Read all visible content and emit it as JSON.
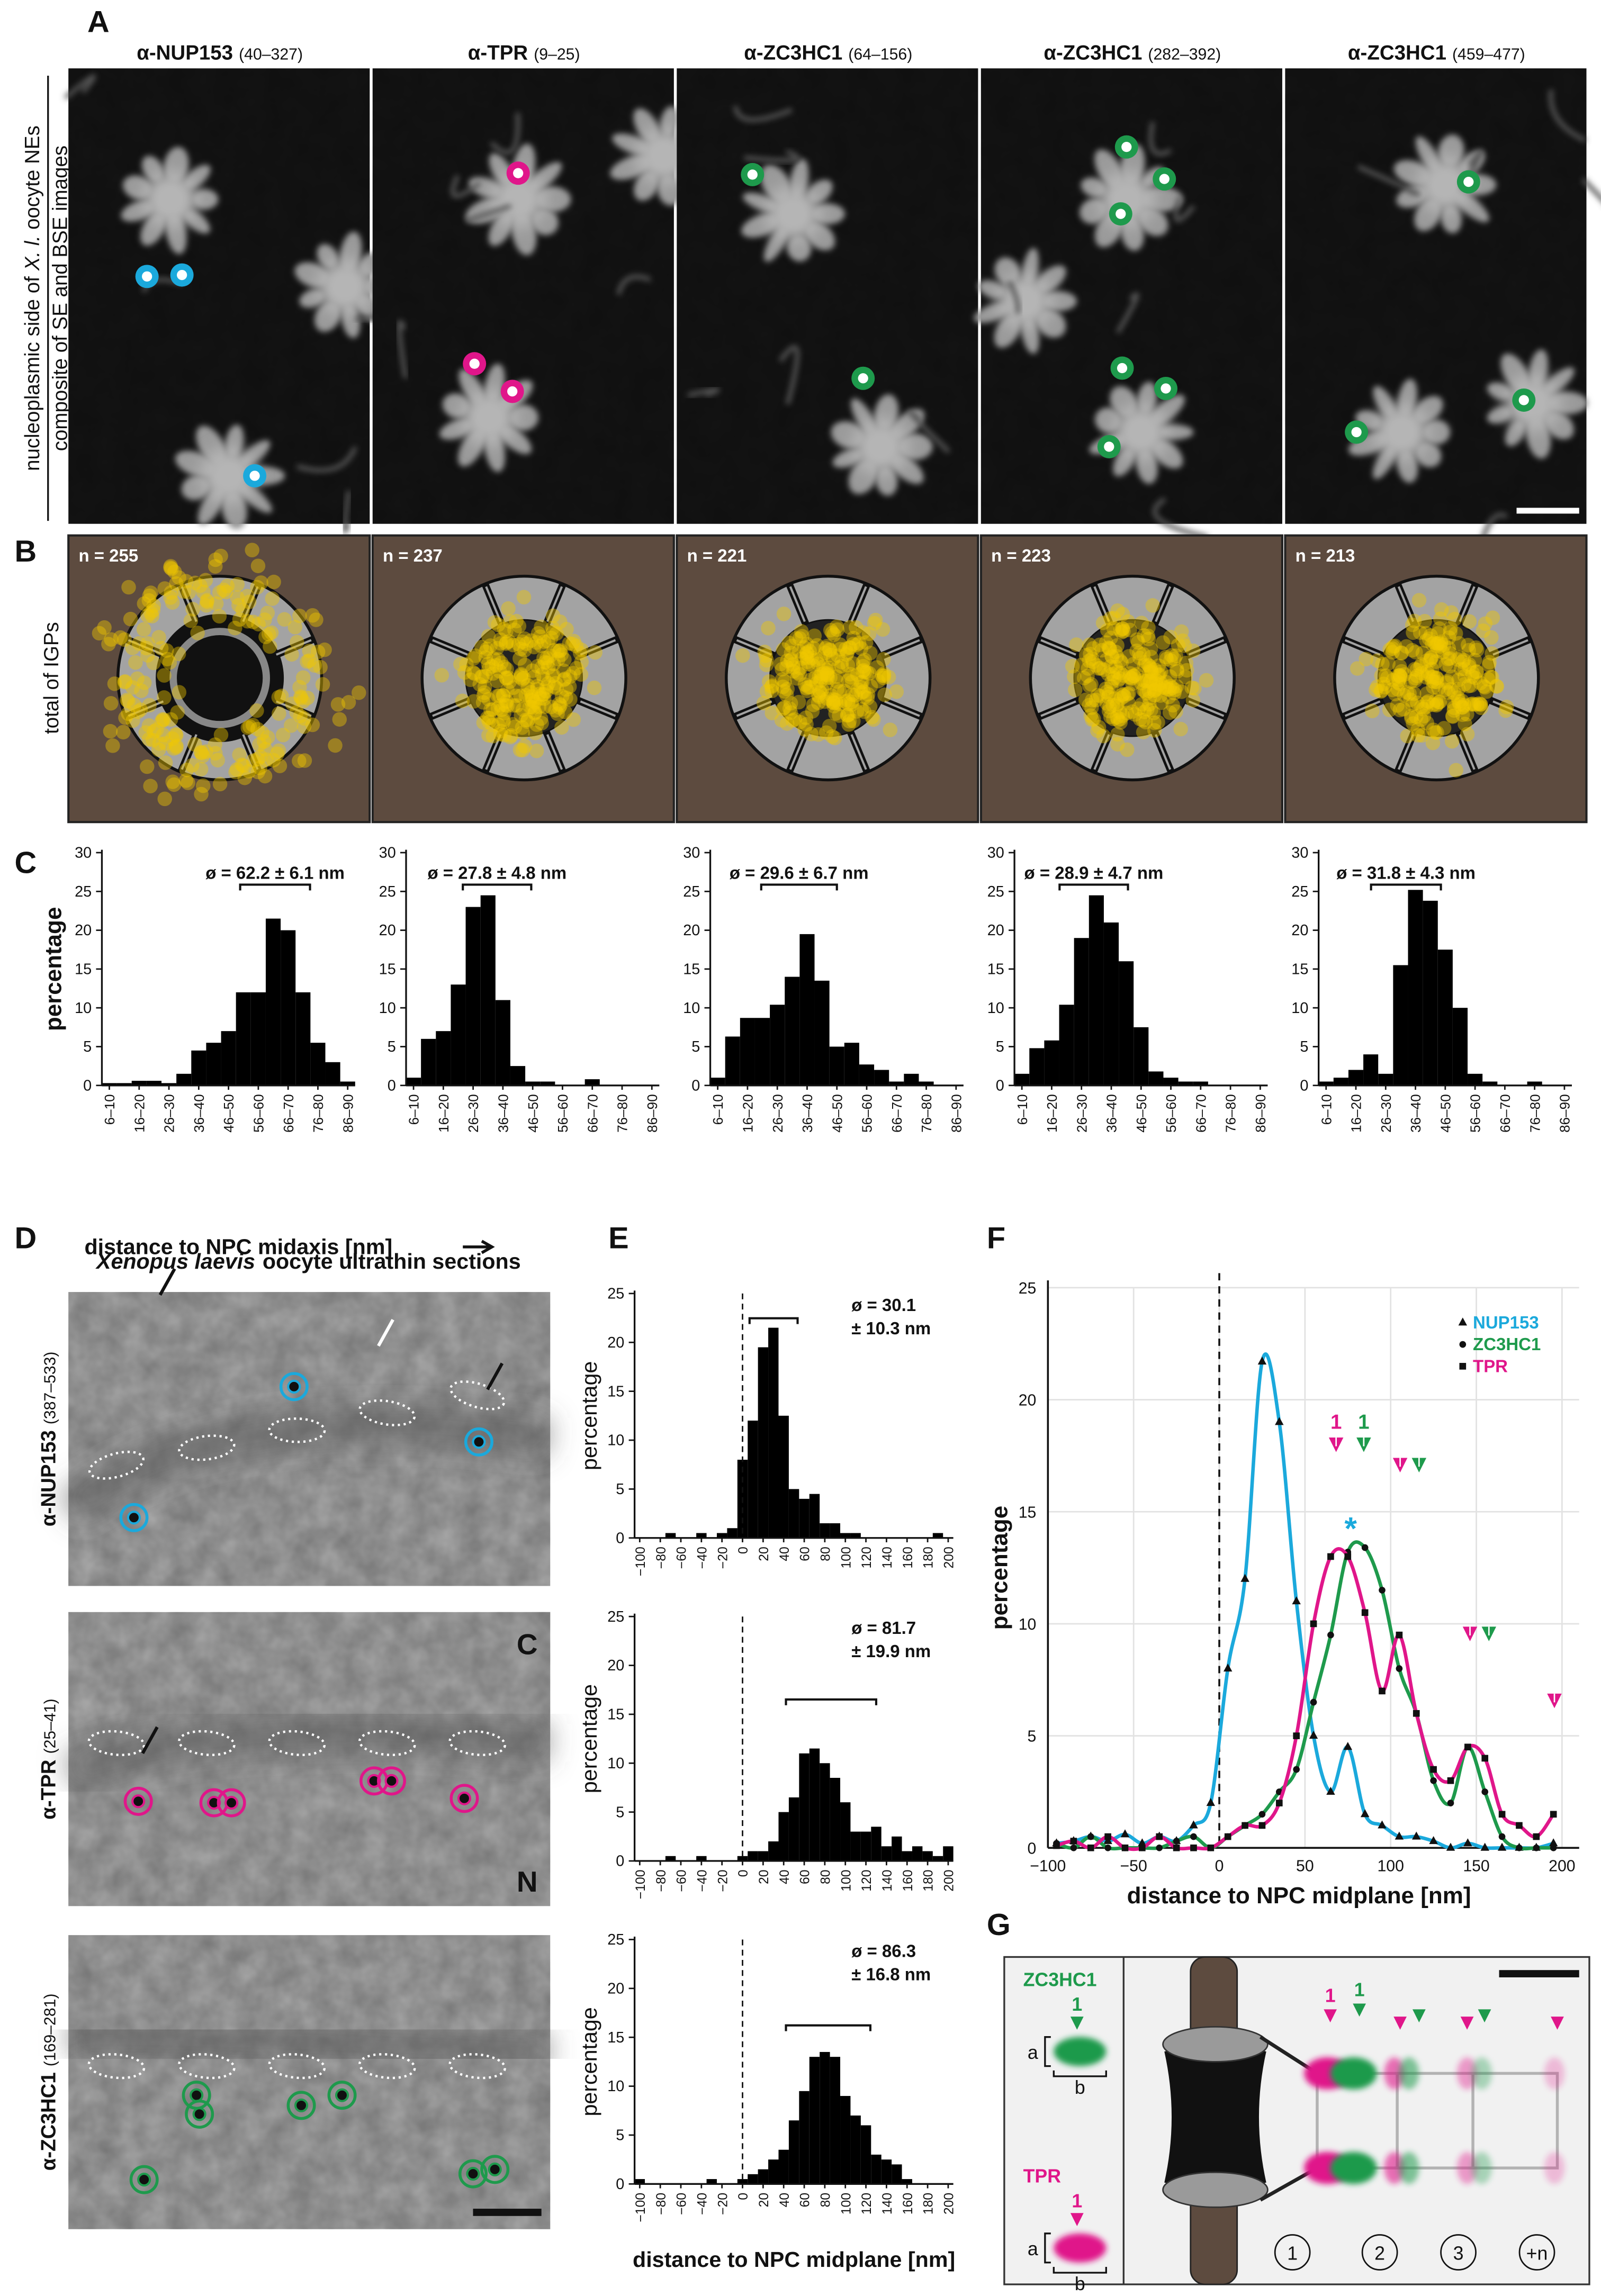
{
  "panel_labels": [
    "A",
    "B",
    "C",
    "D",
    "E",
    "F",
    "G"
  ],
  "panel_a": {
    "side_label": {
      "line1_start": "nucleoplasmic side of",
      "line1_italic": "X. l.",
      "line1_end": "oocyte NEs",
      "line2": "composite of SE and BSE images"
    },
    "columns": [
      {
        "antibody": "α-NUP153",
        "range": "(40–327)"
      },
      {
        "antibody": "α-TPR",
        "range": "(9–25)"
      },
      {
        "antibody": "α-ZC3HC1",
        "range": "(64–156)"
      },
      {
        "antibody": "α-ZC3HC1",
        "range": "(282–392)"
      },
      {
        "antibody": "α-ZC3HC1",
        "range": "(459–477)"
      }
    ]
  },
  "panel_b": {
    "side_label": "total of IGPs",
    "n_labels": [
      "n = 255",
      "n = 237",
      "n = 221",
      "n = 223",
      "n = 213"
    ]
  },
  "panel_c": {
    "y_label": "percentage",
    "x_label": "distance to NPC midaxis [nm]"
  },
  "panel_d": {
    "title_italic": "Xenopus laevis",
    "title_rest": "oocyte ultrathin sections",
    "rows": [
      {
        "antibody": "α-NUP153",
        "range": "(387–533)"
      },
      {
        "antibody": "α-TPR",
        "range": "(25–41)"
      },
      {
        "antibody": "α-ZC3HC1",
        "range": "(169–281)"
      }
    ],
    "side_letters": [
      "C",
      "N"
    ]
  },
  "chart_data": [
    {
      "type": "bar",
      "panel": "C",
      "annotation": "ø = 62.2 ± 6.1 nm",
      "color": "#000000",
      "categories": [
        "6–10",
        null,
        "16–20",
        null,
        "26–30",
        null,
        "36–40",
        null,
        "46–50",
        null,
        "56–60",
        null,
        "66–70",
        null,
        "76–80",
        null,
        "86–90"
      ],
      "values": [
        0.3,
        0.3,
        0.6,
        0.6,
        0.3,
        1.5,
        4.5,
        5.5,
        7,
        12,
        12,
        21.5,
        20,
        12,
        5.5,
        3,
        0.5
      ],
      "ylim": [
        0,
        30
      ],
      "yticks": [
        0,
        5,
        10,
        15,
        20,
        25,
        30
      ]
    },
    {
      "type": "bar",
      "panel": "C",
      "annotation": "ø = 27.8 ± 4.8 nm",
      "color": "#000000",
      "categories": [
        "6–10",
        null,
        "16–20",
        null,
        "26–30",
        null,
        "36–40",
        null,
        "46–50",
        null,
        "56–60",
        null,
        "66–70",
        null,
        "76–80",
        null,
        "86–90"
      ],
      "values": [
        1,
        6,
        7,
        13,
        23,
        24.5,
        11,
        2.5,
        0.5,
        0.5,
        0,
        0,
        0.8,
        0,
        0,
        0,
        0
      ],
      "ylim": [
        0,
        30
      ],
      "yticks": [
        0,
        5,
        10,
        15,
        20,
        25,
        30
      ]
    },
    {
      "type": "bar",
      "panel": "C",
      "annotation": "ø = 29.6 ± 6.7 nm",
      "color": "#000000",
      "categories": [
        "6–10",
        null,
        "16–20",
        null,
        "26–30",
        null,
        "36–40",
        null,
        "46–50",
        null,
        "56–60",
        null,
        "66–70",
        null,
        "76–80",
        null,
        "86–90"
      ],
      "values": [
        1,
        6.3,
        8.7,
        8.7,
        10.4,
        14,
        19.5,
        13.5,
        5,
        5.5,
        2.7,
        2,
        0.5,
        1.5,
        0.5,
        0,
        0
      ],
      "ylim": [
        0,
        30
      ],
      "yticks": [
        0,
        5,
        10,
        15,
        20,
        25,
        30
      ]
    },
    {
      "type": "bar",
      "panel": "C",
      "annotation": "ø = 28.9 ± 4.7 nm",
      "color": "#000000",
      "categories": [
        "6–10",
        null,
        "16–20",
        null,
        "26–30",
        null,
        "36–40",
        null,
        "46–50",
        null,
        "56–60",
        null,
        "66–70",
        null,
        "76–80",
        null,
        "86–90"
      ],
      "values": [
        1.5,
        4.8,
        5.8,
        10.4,
        19,
        24.5,
        21,
        16,
        7.5,
        1.8,
        1,
        0.5,
        0.5,
        0,
        0,
        0,
        0
      ],
      "ylim": [
        0,
        30
      ],
      "yticks": [
        0,
        5,
        10,
        15,
        20,
        25,
        30
      ]
    },
    {
      "type": "bar",
      "panel": "C",
      "annotation": "ø = 31.8 ± 4.3 nm",
      "color": "#000000",
      "categories": [
        "6–10",
        null,
        "16–20",
        null,
        "26–30",
        null,
        "36–40",
        null,
        "46–50",
        null,
        "56–60",
        null,
        "66–70",
        null,
        "76–80",
        null,
        "86–90"
      ],
      "values": [
        0.5,
        1,
        2,
        4,
        1.5,
        15.5,
        25.2,
        23.8,
        17.5,
        10,
        1.5,
        0.5,
        0,
        0,
        0.5,
        0,
        0
      ],
      "ylim": [
        0,
        30
      ],
      "yticks": [
        0,
        5,
        10,
        15,
        20,
        25,
        30
      ]
    },
    {
      "type": "bar",
      "panel": "E",
      "y_label": "percentage",
      "annotation": [
        "ø = 30.1",
        "± 10.3 nm"
      ],
      "color": "#000000",
      "reference_line": "0",
      "categories": [
        "−100",
        null,
        "−80",
        null,
        "−60",
        null,
        "−40",
        null,
        "−20",
        null,
        "0",
        null,
        "20",
        null,
        "40",
        null,
        "60",
        null,
        "80",
        null,
        "100",
        null,
        "120",
        null,
        "140",
        null,
        "160",
        null,
        "180",
        null,
        "200"
      ],
      "values": [
        0,
        0,
        0,
        0.5,
        0,
        0,
        0.5,
        0,
        0.5,
        1,
        8,
        12,
        19.5,
        21.5,
        12.5,
        5,
        4,
        4.5,
        1.5,
        1.5,
        0.5,
        0.5,
        0,
        0,
        0,
        0,
        0,
        0,
        0,
        0.5,
        0
      ],
      "ylim": [
        0,
        25
      ],
      "yticks": [
        0,
        5,
        10,
        15,
        20,
        25
      ]
    },
    {
      "type": "bar",
      "panel": "E",
      "y_label": "percentage",
      "annotation": [
        "ø = 81.7",
        "± 19.9 nm"
      ],
      "color": "#000000",
      "reference_line": "0",
      "categories": [
        "−100",
        null,
        "−80",
        null,
        "−60",
        null,
        "−40",
        null,
        "−20",
        null,
        "0",
        null,
        "20",
        null,
        "40",
        null,
        "60",
        null,
        "80",
        null,
        "100",
        null,
        "120",
        null,
        "140",
        null,
        "160",
        null,
        "180",
        null,
        "200"
      ],
      "values": [
        0,
        0,
        0,
        0.5,
        0,
        0,
        0.5,
        0,
        0,
        0,
        0.5,
        1,
        1,
        2,
        5,
        6.5,
        11,
        11.5,
        10,
        8.5,
        6,
        3,
        3,
        3.5,
        1.5,
        2.5,
        1,
        1.5,
        1,
        0.5,
        1.5
      ],
      "ylim": [
        0,
        25
      ],
      "yticks": [
        0,
        5,
        10,
        15,
        20,
        25
      ]
    },
    {
      "type": "bar",
      "panel": "E",
      "y_label": "percentage",
      "x_label": "distance to NPC midplane [nm]",
      "annotation": [
        "ø = 86.3",
        "± 16.8 nm"
      ],
      "color": "#000000",
      "reference_line": "0",
      "categories": [
        "−100",
        null,
        "−80",
        null,
        "−60",
        null,
        "−40",
        null,
        "−20",
        null,
        "0",
        null,
        "20",
        null,
        "40",
        null,
        "60",
        null,
        "80",
        null,
        "100",
        null,
        "120",
        null,
        "140",
        null,
        "160",
        null,
        "180",
        null,
        "200"
      ],
      "values": [
        0.5,
        0,
        0,
        0,
        0,
        0,
        0,
        0.5,
        0,
        0,
        0.5,
        1,
        1.5,
        2.5,
        3.5,
        6.5,
        9.5,
        13,
        13.5,
        13,
        9,
        7,
        6,
        3,
        2.5,
        2,
        0.5,
        0,
        0,
        0,
        0
      ],
      "ylim": [
        0,
        25
      ],
      "yticks": [
        0,
        5,
        10,
        15,
        20,
        25
      ]
    },
    {
      "type": "line",
      "panel": "F",
      "y_label": "percentage",
      "x_label": "distance to NPC midplane [nm]",
      "grid": true,
      "legend": "upper right",
      "reference_line": 0,
      "xlim": [
        -100,
        210
      ],
      "xticks": [
        {
          "value": -100,
          "label": "−100"
        },
        {
          "value": -50,
          "label": "−50"
        },
        0,
        50,
        100,
        150,
        200
      ],
      "ylim": [
        0,
        25
      ],
      "yticks": [
        0,
        5,
        10,
        15,
        20,
        25
      ],
      "x": [
        -95,
        -85,
        -75,
        -65,
        -55,
        -45,
        -35,
        -25,
        -15,
        -5,
        5,
        15,
        25,
        35,
        45,
        55,
        65,
        75,
        85,
        95,
        105,
        115,
        125,
        135,
        145,
        155,
        165,
        175,
        185,
        195
      ],
      "series": [
        {
          "name": "NUP153",
          "color": "#1ba9dc",
          "marker": "triangle",
          "values": [
            0.2,
            0.3,
            0.5,
            0.3,
            0.6,
            0.2,
            0.5,
            0.3,
            1,
            2,
            8,
            12,
            21.7,
            19,
            11,
            5,
            2.5,
            4.5,
            1.5,
            1,
            0.5,
            0.5,
            0.3,
            0,
            0.2,
            0,
            0,
            0,
            0,
            0.2
          ]
        },
        {
          "name": "ZC3HC1",
          "color": "#1e9a4c",
          "marker": "circle",
          "values": [
            0.2,
            0,
            0.5,
            0,
            0,
            0,
            0,
            0.3,
            0.5,
            0,
            0.5,
            1,
            1.5,
            2.5,
            3.5,
            6.5,
            9.5,
            13.2,
            13.4,
            11.5,
            8,
            6,
            3,
            2,
            4.5,
            2.5,
            0.5,
            0,
            0,
            0
          ]
        },
        {
          "name": "TPR",
          "color": "#e0168a",
          "marker": "square",
          "values": [
            0.1,
            0.3,
            0,
            0.5,
            0,
            0,
            0.5,
            0,
            0,
            0,
            0.5,
            1,
            1,
            2,
            5,
            10,
            13,
            13,
            10.5,
            7,
            9.5,
            6,
            3.5,
            3,
            4.5,
            4,
            1.5,
            1,
            0.5,
            1.5
          ]
        }
      ],
      "annotations": [
        {
          "text": "1",
          "color": "#e0168a"
        },
        {
          "text": "1",
          "color": "#1e9a4c"
        },
        {
          "text": "*",
          "color": "#1ba9dc"
        }
      ]
    }
  ],
  "panel_g": {
    "zc3hc1": {
      "name": "ZC3HC1",
      "number": "1",
      "a": "a",
      "b": "b"
    },
    "tpr": {
      "name": "TPR",
      "number": "1",
      "a": "a",
      "b": "b"
    },
    "numbers": [
      "1",
      "1"
    ],
    "positions": [
      "1",
      "2",
      "3",
      "+n"
    ]
  }
}
